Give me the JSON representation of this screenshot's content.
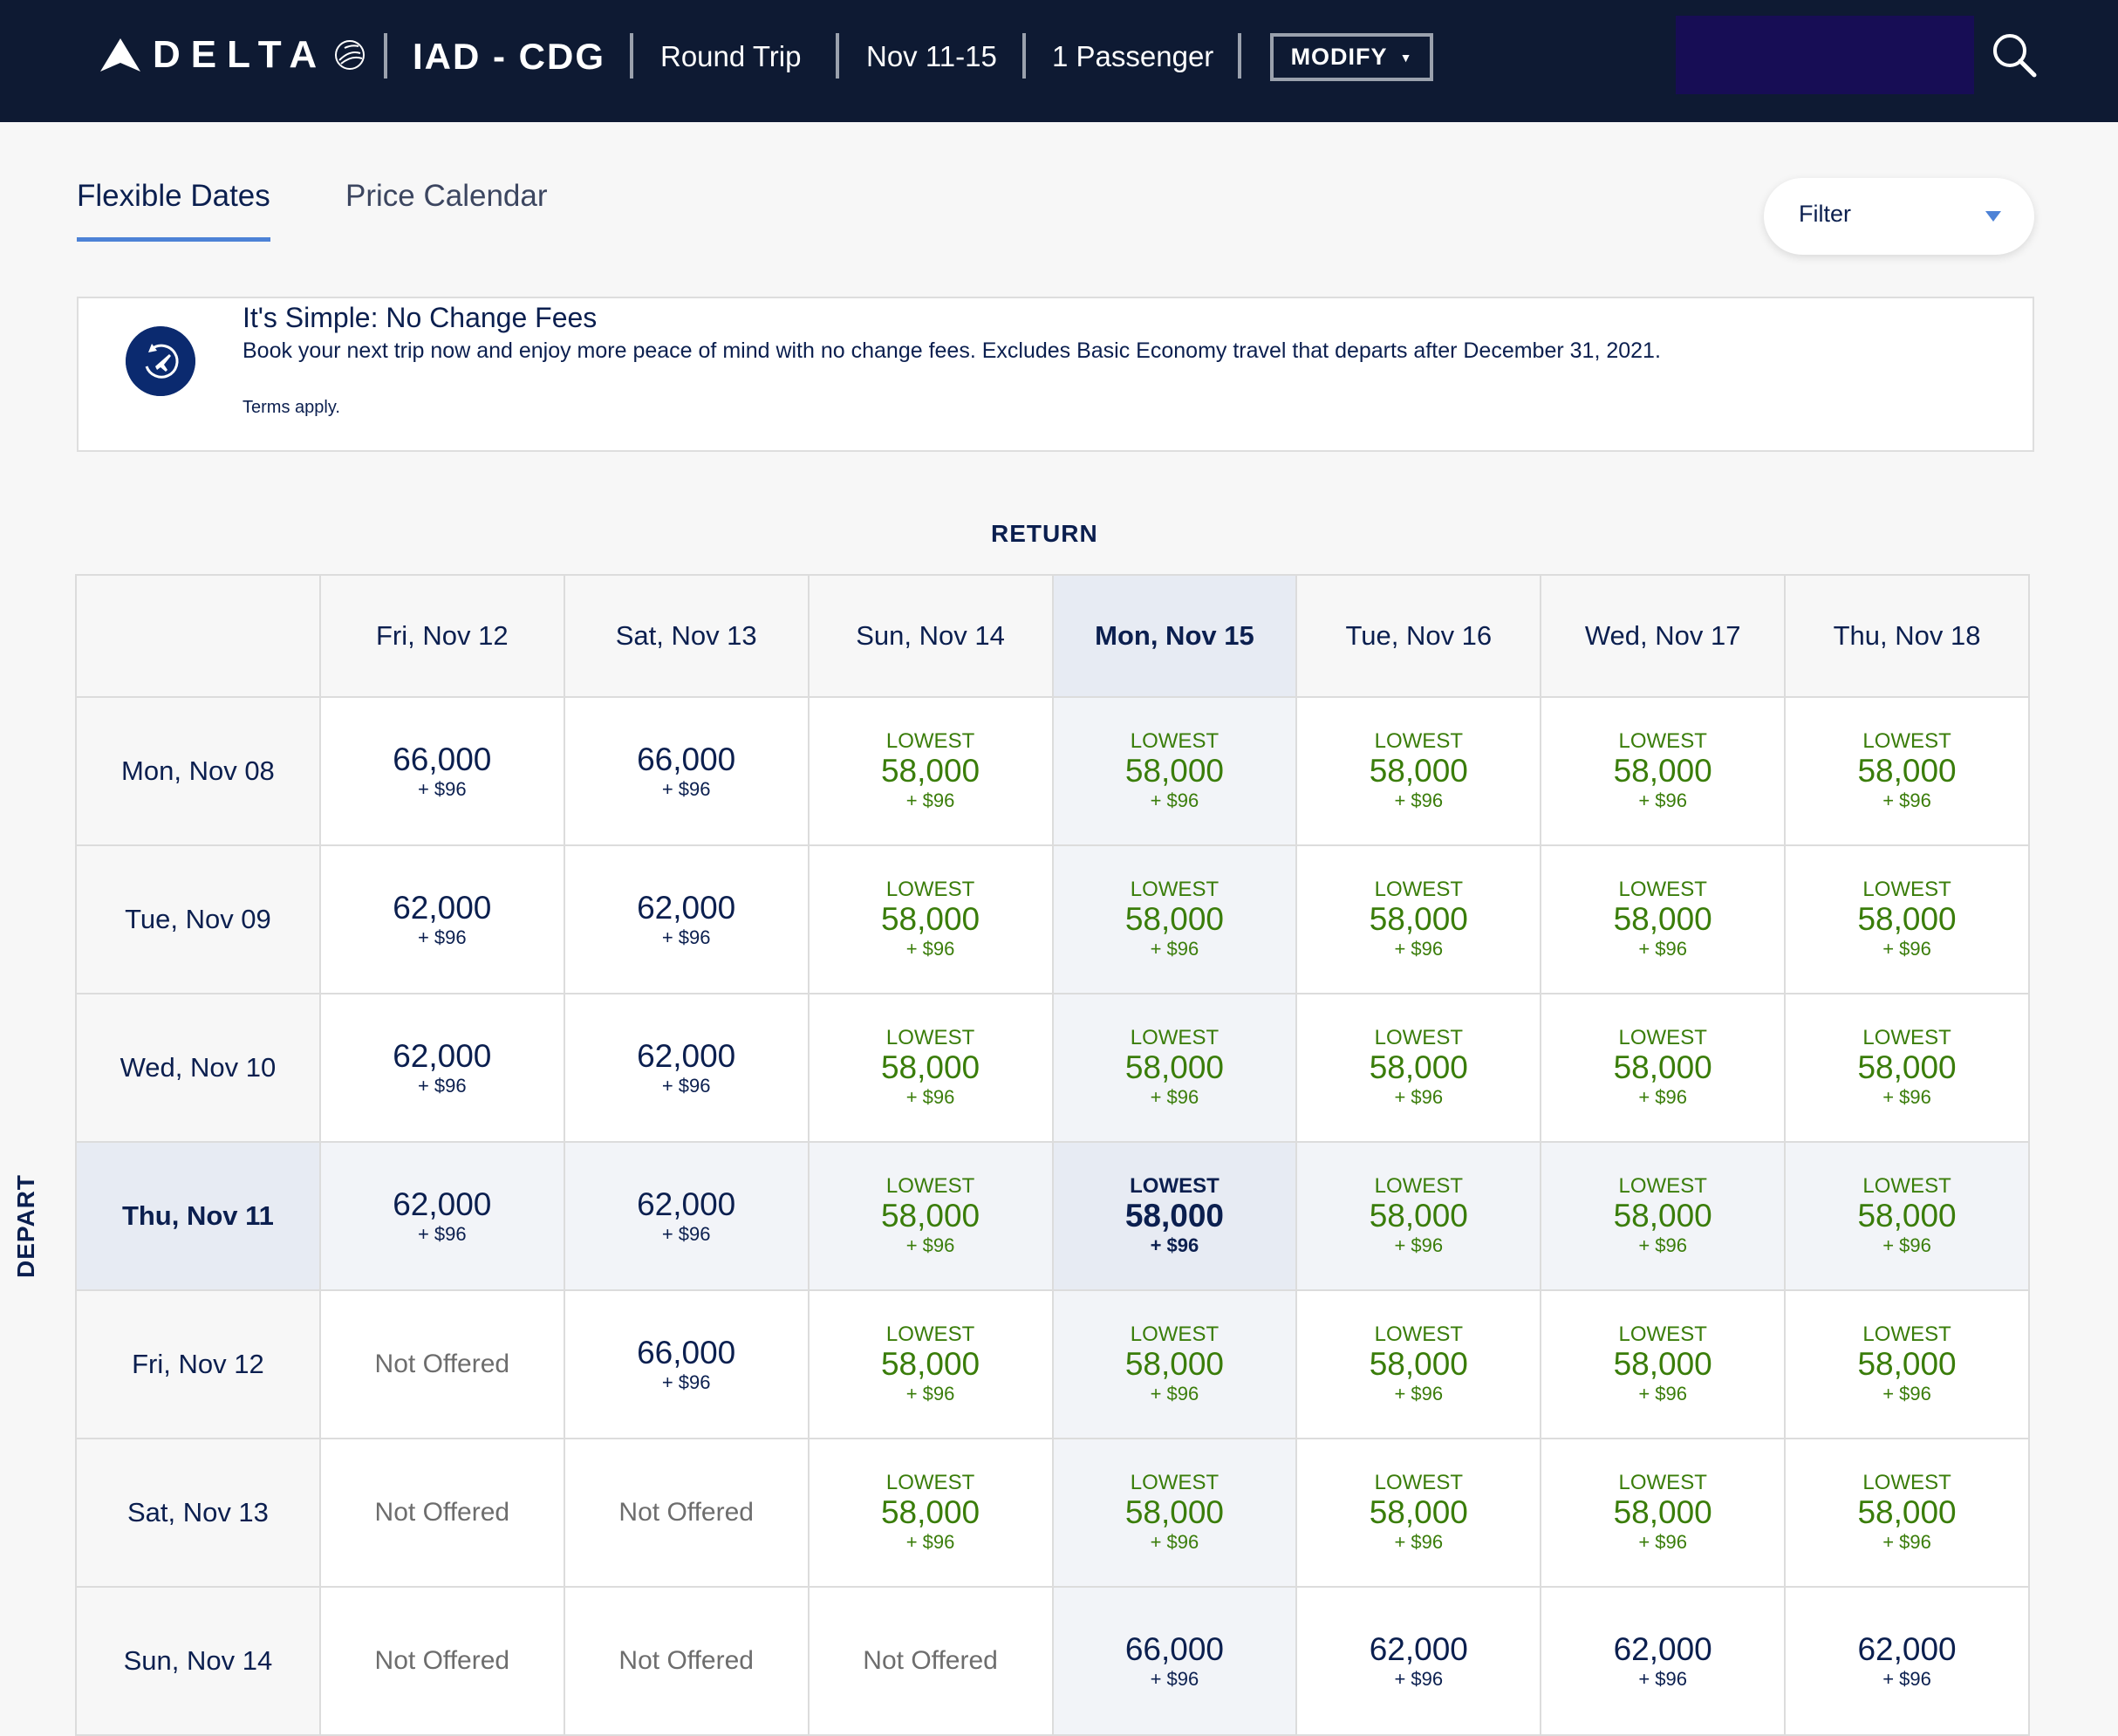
{
  "header": {
    "brand": "DELTA",
    "route": "IAD - CDG",
    "trip_type": "Round Trip",
    "dates": "Nov 11-15",
    "passengers": "1 Passenger",
    "modify_label": "MODIFY"
  },
  "tabs": [
    {
      "label": "Flexible Dates",
      "active": true
    },
    {
      "label": "Price Calendar",
      "active": false
    }
  ],
  "filter": {
    "label": "Filter"
  },
  "banner": {
    "title": "It's Simple: No Change Fees",
    "text": "Book your next trip now and enjoy more peace of mind with no change fees. Excludes Basic Economy travel that departs after December 31, 2021.",
    "terms": "Terms apply."
  },
  "grid": {
    "return_label": "RETURN",
    "depart_label": "DEPART",
    "lowest_label": "LOWEST",
    "not_offered": "Not Offered",
    "return_dates": [
      "Fri, Nov 12",
      "Sat, Nov 13",
      "Sun, Nov 14",
      "Mon, Nov 15",
      "Tue, Nov 16",
      "Wed, Nov 17",
      "Thu, Nov 18"
    ],
    "selected_return": 3,
    "selected_depart": 3,
    "rows": [
      {
        "depart": "Mon, Nov 08",
        "cells": [
          {
            "miles": "66,000",
            "fee": "+ $96",
            "lowest": false
          },
          {
            "miles": "66,000",
            "fee": "+ $96",
            "lowest": false
          },
          {
            "miles": "58,000",
            "fee": "+ $96",
            "lowest": true
          },
          {
            "miles": "58,000",
            "fee": "+ $96",
            "lowest": true
          },
          {
            "miles": "58,000",
            "fee": "+ $96",
            "lowest": true
          },
          {
            "miles": "58,000",
            "fee": "+ $96",
            "lowest": true
          },
          {
            "miles": "58,000",
            "fee": "+ $96",
            "lowest": true
          }
        ]
      },
      {
        "depart": "Tue, Nov 09",
        "cells": [
          {
            "miles": "62,000",
            "fee": "+ $96",
            "lowest": false
          },
          {
            "miles": "62,000",
            "fee": "+ $96",
            "lowest": false
          },
          {
            "miles": "58,000",
            "fee": "+ $96",
            "lowest": true
          },
          {
            "miles": "58,000",
            "fee": "+ $96",
            "lowest": true
          },
          {
            "miles": "58,000",
            "fee": "+ $96",
            "lowest": true
          },
          {
            "miles": "58,000",
            "fee": "+ $96",
            "lowest": true
          },
          {
            "miles": "58,000",
            "fee": "+ $96",
            "lowest": true
          }
        ]
      },
      {
        "depart": "Wed, Nov 10",
        "cells": [
          {
            "miles": "62,000",
            "fee": "+ $96",
            "lowest": false
          },
          {
            "miles": "62,000",
            "fee": "+ $96",
            "lowest": false
          },
          {
            "miles": "58,000",
            "fee": "+ $96",
            "lowest": true
          },
          {
            "miles": "58,000",
            "fee": "+ $96",
            "lowest": true
          },
          {
            "miles": "58,000",
            "fee": "+ $96",
            "lowest": true
          },
          {
            "miles": "58,000",
            "fee": "+ $96",
            "lowest": true
          },
          {
            "miles": "58,000",
            "fee": "+ $96",
            "lowest": true
          }
        ]
      },
      {
        "depart": "Thu, Nov 11",
        "cells": [
          {
            "miles": "62,000",
            "fee": "+ $96",
            "lowest": false
          },
          {
            "miles": "62,000",
            "fee": "+ $96",
            "lowest": false
          },
          {
            "miles": "58,000",
            "fee": "+ $96",
            "lowest": true
          },
          {
            "miles": "58,000",
            "fee": "+ $96",
            "lowest": true
          },
          {
            "miles": "58,000",
            "fee": "+ $96",
            "lowest": true
          },
          {
            "miles": "58,000",
            "fee": "+ $96",
            "lowest": true
          },
          {
            "miles": "58,000",
            "fee": "+ $96",
            "lowest": true
          }
        ]
      },
      {
        "depart": "Fri, Nov 12",
        "cells": [
          null,
          {
            "miles": "66,000",
            "fee": "+ $96",
            "lowest": false
          },
          {
            "miles": "58,000",
            "fee": "+ $96",
            "lowest": true
          },
          {
            "miles": "58,000",
            "fee": "+ $96",
            "lowest": true
          },
          {
            "miles": "58,000",
            "fee": "+ $96",
            "lowest": true
          },
          {
            "miles": "58,000",
            "fee": "+ $96",
            "lowest": true
          },
          {
            "miles": "58,000",
            "fee": "+ $96",
            "lowest": true
          }
        ]
      },
      {
        "depart": "Sat, Nov 13",
        "cells": [
          null,
          null,
          {
            "miles": "58,000",
            "fee": "+ $96",
            "lowest": true
          },
          {
            "miles": "58,000",
            "fee": "+ $96",
            "lowest": true
          },
          {
            "miles": "58,000",
            "fee": "+ $96",
            "lowest": true
          },
          {
            "miles": "58,000",
            "fee": "+ $96",
            "lowest": true
          },
          {
            "miles": "58,000",
            "fee": "+ $96",
            "lowest": true
          }
        ]
      },
      {
        "depart": "Sun, Nov 14",
        "cells": [
          null,
          null,
          null,
          {
            "miles": "66,000",
            "fee": "+ $96",
            "lowest": false
          },
          {
            "miles": "62,000",
            "fee": "+ $96",
            "lowest": false
          },
          {
            "miles": "62,000",
            "fee": "+ $96",
            "lowest": false
          },
          {
            "miles": "62,000",
            "fee": "+ $96",
            "lowest": false
          }
        ]
      }
    ]
  },
  "colors": {
    "header_bg": "#0e1a33",
    "navy": "#0b1f4f",
    "lowest_green": "#3a7d0a",
    "accent_blue": "#4d82d6",
    "selected_bg": "#e7ebf3"
  },
  "icons": {
    "logo": "delta-widget-icon",
    "search": "search-icon",
    "banner": "plane-circle-icon",
    "filter_caret": "chevron-down-icon"
  }
}
